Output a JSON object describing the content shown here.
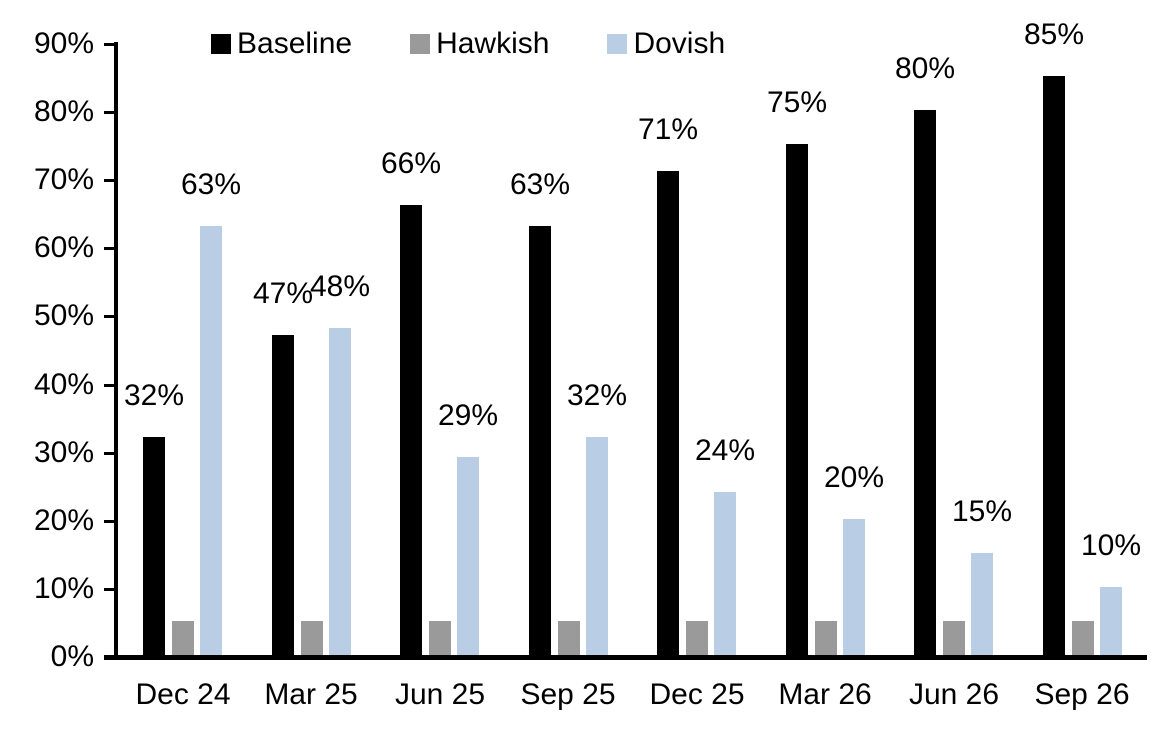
{
  "chart_data": {
    "type": "bar",
    "title": "",
    "xlabel": "",
    "ylabel": "",
    "categories": [
      "Dec 24",
      "Mar 25",
      "Jun 25",
      "Sep 25",
      "Dec 25",
      "Mar 26",
      "Jun 26",
      "Sep 26"
    ],
    "series": [
      {
        "name": "Baseline",
        "color": "#000000",
        "values": [
          32,
          47,
          66,
          63,
          71,
          75,
          80,
          85
        ],
        "data_labels": [
          "32%",
          "47%",
          "66%",
          "63%",
          "71%",
          "75%",
          "80%",
          "85%"
        ]
      },
      {
        "name": "Hawkish",
        "color": "#9a9a9a",
        "values": [
          5,
          5,
          5,
          5,
          5,
          5,
          5,
          5
        ],
        "data_labels": []
      },
      {
        "name": "Dovish",
        "color": "#b9cde5",
        "values": [
          63,
          48,
          29,
          32,
          24,
          20,
          15,
          10
        ],
        "data_labels": [
          "63%",
          "48%",
          "29%",
          "32%",
          "24%",
          "20%",
          "15%",
          "10%"
        ]
      }
    ],
    "y_axis": {
      "min": 0,
      "max": 90,
      "tick_labels": [
        "0%",
        "10%",
        "20%",
        "30%",
        "40%",
        "50%",
        "60%",
        "70%",
        "80%",
        "90%"
      ]
    },
    "grid": false,
    "legend_position": "top"
  }
}
